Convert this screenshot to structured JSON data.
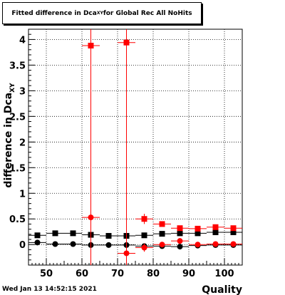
{
  "title": {
    "prefix": "Fitted difference in Dca",
    "subscript": "XY",
    "suffix": " for Global Rec All NoHits"
  },
  "footer": {
    "timestamp": "Wed Jan 13 14:52:15 2021"
  },
  "chart_data": {
    "type": "scatter",
    "xlabel": "Quality",
    "ylabel": "difference in Dca",
    "ylabel_subscript": "XY",
    "xlim": [
      45,
      105
    ],
    "ylim": [
      -0.4,
      4.2
    ],
    "x_ticks": [
      50,
      60,
      70,
      80,
      90,
      100
    ],
    "y_ticks": [
      0,
      0.5,
      1,
      1.5,
      2,
      2.5,
      3,
      3.5,
      4
    ],
    "y_tick_labels": [
      "0",
      "0.5",
      "1",
      "1.5",
      "2",
      "2.5",
      "3",
      "3.5",
      "4"
    ],
    "grid": true,
    "colors": {
      "black": "#000000",
      "red": "#ff0000"
    },
    "series": [
      {
        "color": "black",
        "marker": "square",
        "x_err": 2.5,
        "points": [
          {
            "x": 47.5,
            "y": 0.18,
            "yerr": 0.015
          },
          {
            "x": 52.5,
            "y": 0.22,
            "yerr": 0.015
          },
          {
            "x": 57.5,
            "y": 0.22,
            "yerr": 0.015
          },
          {
            "x": 62.5,
            "y": 0.19,
            "yerr": 0.015
          },
          {
            "x": 67.5,
            "y": 0.17,
            "yerr": 0.015
          },
          {
            "x": 72.5,
            "y": 0.17,
            "yerr": 0.015
          },
          {
            "x": 77.5,
            "y": 0.18,
            "yerr": 0.015
          },
          {
            "x": 82.5,
            "y": 0.21,
            "yerr": 0.015
          },
          {
            "x": 87.5,
            "y": 0.22,
            "yerr": 0.015
          },
          {
            "x": 92.5,
            "y": 0.22,
            "yerr": 0.015
          },
          {
            "x": 97.5,
            "y": 0.24,
            "yerr": 0.015
          },
          {
            "x": 102.5,
            "y": 0.24,
            "yerr": 0.015
          }
        ]
      },
      {
        "color": "black",
        "marker": "circle",
        "x_err": 2.5,
        "points": [
          {
            "x": 47.5,
            "y": 0.04,
            "yerr": 0.015
          },
          {
            "x": 52.5,
            "y": 0.01,
            "yerr": 0.015
          },
          {
            "x": 57.5,
            "y": 0.01,
            "yerr": 0.015
          },
          {
            "x": 62.5,
            "y": -0.01,
            "yerr": 0.015
          },
          {
            "x": 67.5,
            "y": -0.01,
            "yerr": 0.015
          },
          {
            "x": 72.5,
            "y": -0.01,
            "yerr": 0.015
          },
          {
            "x": 77.5,
            "y": -0.03,
            "yerr": 0.015
          },
          {
            "x": 82.5,
            "y": -0.03,
            "yerr": 0.015
          },
          {
            "x": 87.5,
            "y": -0.04,
            "yerr": 0.015
          },
          {
            "x": 92.5,
            "y": -0.02,
            "yerr": 0.015
          },
          {
            "x": 97.5,
            "y": -0.01,
            "yerr": 0.015
          },
          {
            "x": 102.5,
            "y": -0.01,
            "yerr": 0.015
          }
        ]
      },
      {
        "color": "red",
        "marker": "square",
        "x_err": 2.5,
        "points": [
          {
            "x": 62.5,
            "y": 3.88,
            "yerr": 4.4
          },
          {
            "x": 72.5,
            "y": 3.94,
            "yerr": 4.4
          },
          {
            "x": 77.5,
            "y": 0.5,
            "yerr": 0.1
          },
          {
            "x": 82.5,
            "y": 0.4,
            "yerr": 0.03
          },
          {
            "x": 87.5,
            "y": 0.32,
            "yerr": 0.03
          },
          {
            "x": 92.5,
            "y": 0.31,
            "yerr": 0.03
          },
          {
            "x": 97.5,
            "y": 0.34,
            "yerr": 0.03
          },
          {
            "x": 102.5,
            "y": 0.32,
            "yerr": 0.03
          }
        ]
      },
      {
        "color": "red",
        "marker": "circle",
        "x_err": 2.5,
        "points": [
          {
            "x": 62.5,
            "y": 0.53,
            "yerr": 0.02
          },
          {
            "x": 72.5,
            "y": -0.17,
            "yerr": 0.03
          },
          {
            "x": 77.5,
            "y": -0.06,
            "yerr": 0.08
          },
          {
            "x": 82.5,
            "y": 0.0,
            "yerr": 0.03
          },
          {
            "x": 87.5,
            "y": 0.07,
            "yerr": 0.03
          },
          {
            "x": 92.5,
            "y": 0.0,
            "yerr": 0.03
          },
          {
            "x": 97.5,
            "y": 0.01,
            "yerr": 0.03
          },
          {
            "x": 102.5,
            "y": 0.01,
            "yerr": 0.03
          }
        ]
      }
    ]
  }
}
